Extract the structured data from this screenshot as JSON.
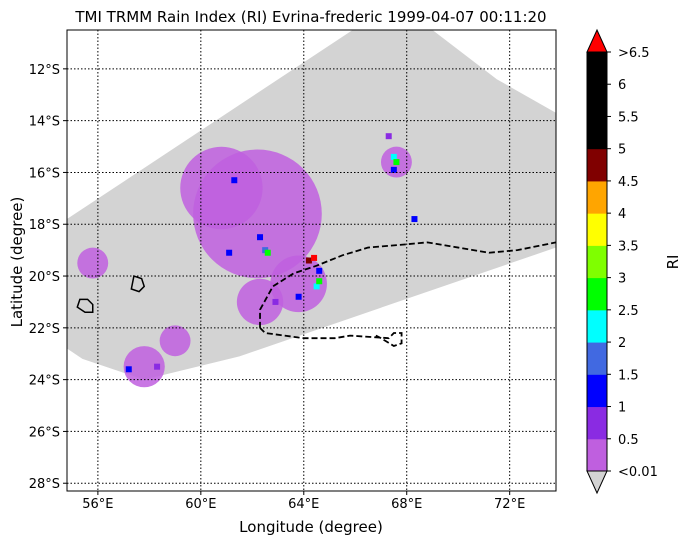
{
  "chart_data": {
    "type": "heatmap",
    "title": "TMI TRMM Rain Index (RI) Evrina-frederic 1999-04-07 00:11:20",
    "xlabel": "Longitude (degree)",
    "ylabel": "Latitude (degree)",
    "xlim": [
      54.8,
      73.8
    ],
    "ylim": [
      -28.3,
      -10.5
    ],
    "x_ticks": [
      {
        "value": 56,
        "label": "56°E"
      },
      {
        "value": 60,
        "label": "60°E"
      },
      {
        "value": 64,
        "label": "64°E"
      },
      {
        "value": 68,
        "label": "68°E"
      },
      {
        "value": 72,
        "label": "72°E"
      }
    ],
    "y_ticks": [
      {
        "value": -12,
        "label": "12°S"
      },
      {
        "value": -14,
        "label": "14°S"
      },
      {
        "value": -16,
        "label": "16°S"
      },
      {
        "value": -18,
        "label": "18°S"
      },
      {
        "value": -20,
        "label": "20°S"
      },
      {
        "value": -22,
        "label": "22°S"
      },
      {
        "value": -24,
        "label": "24°S"
      },
      {
        "value": -26,
        "label": "26°S"
      },
      {
        "value": -28,
        "label": "28°S"
      }
    ],
    "grid": "dotted",
    "colorbar": {
      "label": "RI",
      "bins": [
        {
          "label": "<0.01",
          "color": "#bf5fdf"
        },
        {
          "label": "0.5",
          "color": "#8a2be2"
        },
        {
          "label": "1",
          "color": "#0000ff"
        },
        {
          "label": "1.5",
          "color": "#4169e1"
        },
        {
          "label": "2",
          "color": "#00ffff"
        },
        {
          "label": "2.5",
          "color": "#00ff00"
        },
        {
          "label": "3",
          "color": "#7fff00"
        },
        {
          "label": "3.5",
          "color": "#ffff00"
        },
        {
          "label": "4",
          "color": "#ffa500"
        },
        {
          "label": "4.5",
          "color": "#800000"
        },
        {
          "label": "5",
          "color": "#000000"
        },
        {
          "label": "5.5",
          "color": "#000000"
        },
        {
          "label": "6",
          "color": "#000000"
        }
      ],
      "top_label": ">6.5",
      "over_color": "#ff0000",
      "under_color": "#d3d3d3"
    },
    "swath": {
      "color": "#d3d3d3",
      "corners": [
        [
          54.8,
          -17.8
        ],
        [
          65.9,
          -10.5
        ],
        [
          69.0,
          -10.5
        ],
        [
          71.5,
          -12.4
        ],
        [
          73.8,
          -13.7
        ],
        [
          73.8,
          -18.9
        ],
        [
          61.5,
          -23.1
        ],
        [
          57.8,
          -24.0
        ],
        [
          55.4,
          -23.2
        ],
        [
          54.8,
          -22.8
        ]
      ]
    },
    "rain_regions": [
      {
        "lon": 62.2,
        "lat": -17.6,
        "radius_deg": 2.5,
        "value": 0.3
      },
      {
        "lon": 60.8,
        "lat": -16.6,
        "radius_deg": 1.6,
        "value": 0.3
      },
      {
        "lon": 63.8,
        "lat": -20.3,
        "radius_deg": 1.1,
        "value": 0.3
      },
      {
        "lon": 62.3,
        "lat": -21.0,
        "radius_deg": 0.9,
        "value": 0.3
      },
      {
        "lon": 67.6,
        "lat": -15.6,
        "radius_deg": 0.6,
        "value": 0.3
      },
      {
        "lon": 57.8,
        "lat": -23.5,
        "radius_deg": 0.8,
        "value": 0.3
      },
      {
        "lon": 59.0,
        "lat": -22.5,
        "radius_deg": 0.6,
        "value": 0.3
      },
      {
        "lon": 55.8,
        "lat": -19.5,
        "radius_deg": 0.6,
        "value": 0.3
      }
    ],
    "rain_points": [
      {
        "lon": 61.3,
        "lat": -16.3,
        "value": 1.2
      },
      {
        "lon": 61.1,
        "lat": -19.1,
        "value": 1.2
      },
      {
        "lon": 62.3,
        "lat": -18.5,
        "value": 1.2
      },
      {
        "lon": 62.5,
        "lat": -19.0,
        "value": 1.7
      },
      {
        "lon": 62.6,
        "lat": -19.1,
        "value": 2.7
      },
      {
        "lon": 64.2,
        "lat": -19.4,
        "value": 4.7
      },
      {
        "lon": 64.4,
        "lat": -19.3,
        "value": 6.8
      },
      {
        "lon": 64.6,
        "lat": -19.8,
        "value": 1.2
      },
      {
        "lon": 64.5,
        "lat": -20.4,
        "value": 2.3
      },
      {
        "lon": 64.6,
        "lat": -20.2,
        "value": 2.7
      },
      {
        "lon": 63.8,
        "lat": -20.8,
        "value": 1.2
      },
      {
        "lon": 62.9,
        "lat": -21.0,
        "value": 0.8
      },
      {
        "lon": 67.5,
        "lat": -15.4,
        "value": 2.3
      },
      {
        "lon": 67.6,
        "lat": -15.6,
        "value": 2.7
      },
      {
        "lon": 67.5,
        "lat": -15.9,
        "value": 1.2
      },
      {
        "lon": 68.3,
        "lat": -17.8,
        "value": 1.2
      },
      {
        "lon": 57.2,
        "lat": -23.6,
        "value": 1.2
      },
      {
        "lon": 58.3,
        "lat": -23.5,
        "value": 0.8
      },
      {
        "lon": 67.3,
        "lat": -14.6,
        "value": 0.8
      }
    ],
    "coastlines": [
      [
        [
          55.3,
          -20.9
        ],
        [
          55.6,
          -20.9
        ],
        [
          55.8,
          -21.1
        ],
        [
          55.8,
          -21.4
        ],
        [
          55.5,
          -21.4
        ],
        [
          55.2,
          -21.2
        ],
        [
          55.3,
          -20.9
        ]
      ],
      [
        [
          57.4,
          -20.0
        ],
        [
          57.7,
          -20.1
        ],
        [
          57.8,
          -20.4
        ],
        [
          57.6,
          -20.6
        ],
        [
          57.3,
          -20.5
        ],
        [
          57.4,
          -20.0
        ]
      ]
    ],
    "track": [
      [
        62.3,
        -22.0
      ],
      [
        62.3,
        -21.3
      ],
      [
        62.8,
        -20.4
      ],
      [
        63.6,
        -19.9
      ],
      [
        64.5,
        -19.6
      ],
      [
        65.5,
        -19.2
      ],
      [
        66.5,
        -18.9
      ],
      [
        67.7,
        -18.8
      ],
      [
        68.8,
        -18.7
      ],
      [
        70.0,
        -18.9
      ],
      [
        71.2,
        -19.1
      ],
      [
        72.3,
        -19.0
      ],
      [
        73.8,
        -18.7
      ]
    ],
    "track2": [
      [
        62.3,
        -22.0
      ],
      [
        62.5,
        -22.2
      ],
      [
        64.0,
        -22.4
      ],
      [
        65.2,
        -22.4
      ],
      [
        65.8,
        -22.3
      ],
      [
        67.3,
        -22.4
      ],
      [
        67.5,
        -22.2
      ],
      [
        67.8,
        -22.2
      ],
      [
        67.8,
        -22.6
      ],
      [
        67.5,
        -22.7
      ],
      [
        67.0,
        -22.4
      ],
      [
        66.8,
        -22.3
      ]
    ]
  }
}
